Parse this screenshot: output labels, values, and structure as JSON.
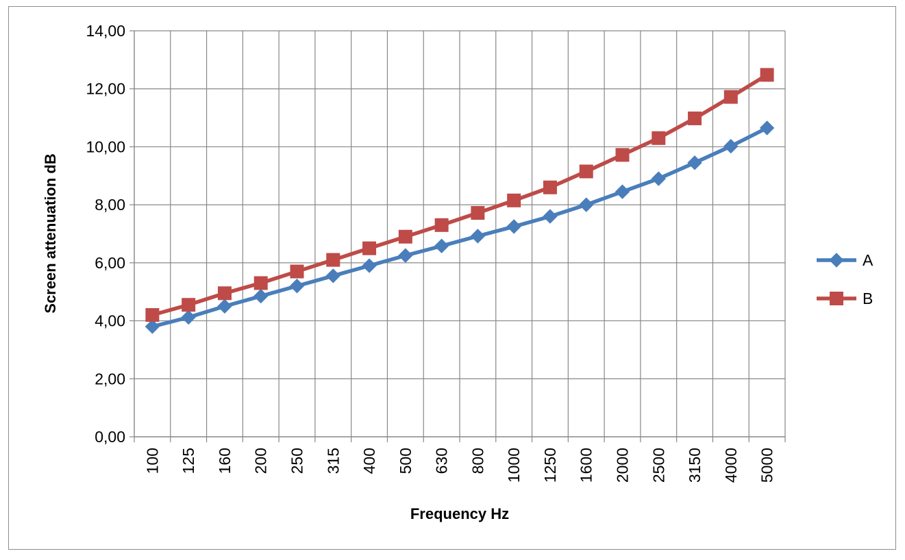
{
  "chart_data": {
    "type": "line",
    "title": "",
    "xlabel": "Frequency Hz",
    "ylabel": "Screen attenuation dB",
    "categories": [
      "100",
      "125",
      "160",
      "200",
      "250",
      "315",
      "400",
      "500",
      "630",
      "800",
      "1000",
      "1250",
      "1600",
      "2000",
      "2500",
      "3150",
      "4000",
      "5000"
    ],
    "ylim": [
      0,
      14
    ],
    "ytick_step": 2,
    "ytick_labels": [
      "0,00",
      "2,00",
      "4,00",
      "6,00",
      "8,00",
      "10,00",
      "12,00",
      "14,00"
    ],
    "grid": true,
    "legend_position": "right",
    "series": [
      {
        "name": "A",
        "color": "#4a7ebb",
        "marker": "diamond",
        "values": [
          3.8,
          4.12,
          4.5,
          4.85,
          5.2,
          5.55,
          5.9,
          6.25,
          6.58,
          6.92,
          7.25,
          7.6,
          8.0,
          8.45,
          8.9,
          9.45,
          10.02,
          10.65
        ]
      },
      {
        "name": "B",
        "color": "#be4b48",
        "marker": "square",
        "values": [
          4.2,
          4.55,
          4.95,
          5.3,
          5.7,
          6.1,
          6.5,
          6.9,
          7.3,
          7.72,
          8.15,
          8.6,
          9.15,
          9.72,
          10.3,
          10.98,
          11.72,
          12.48
        ]
      }
    ]
  }
}
